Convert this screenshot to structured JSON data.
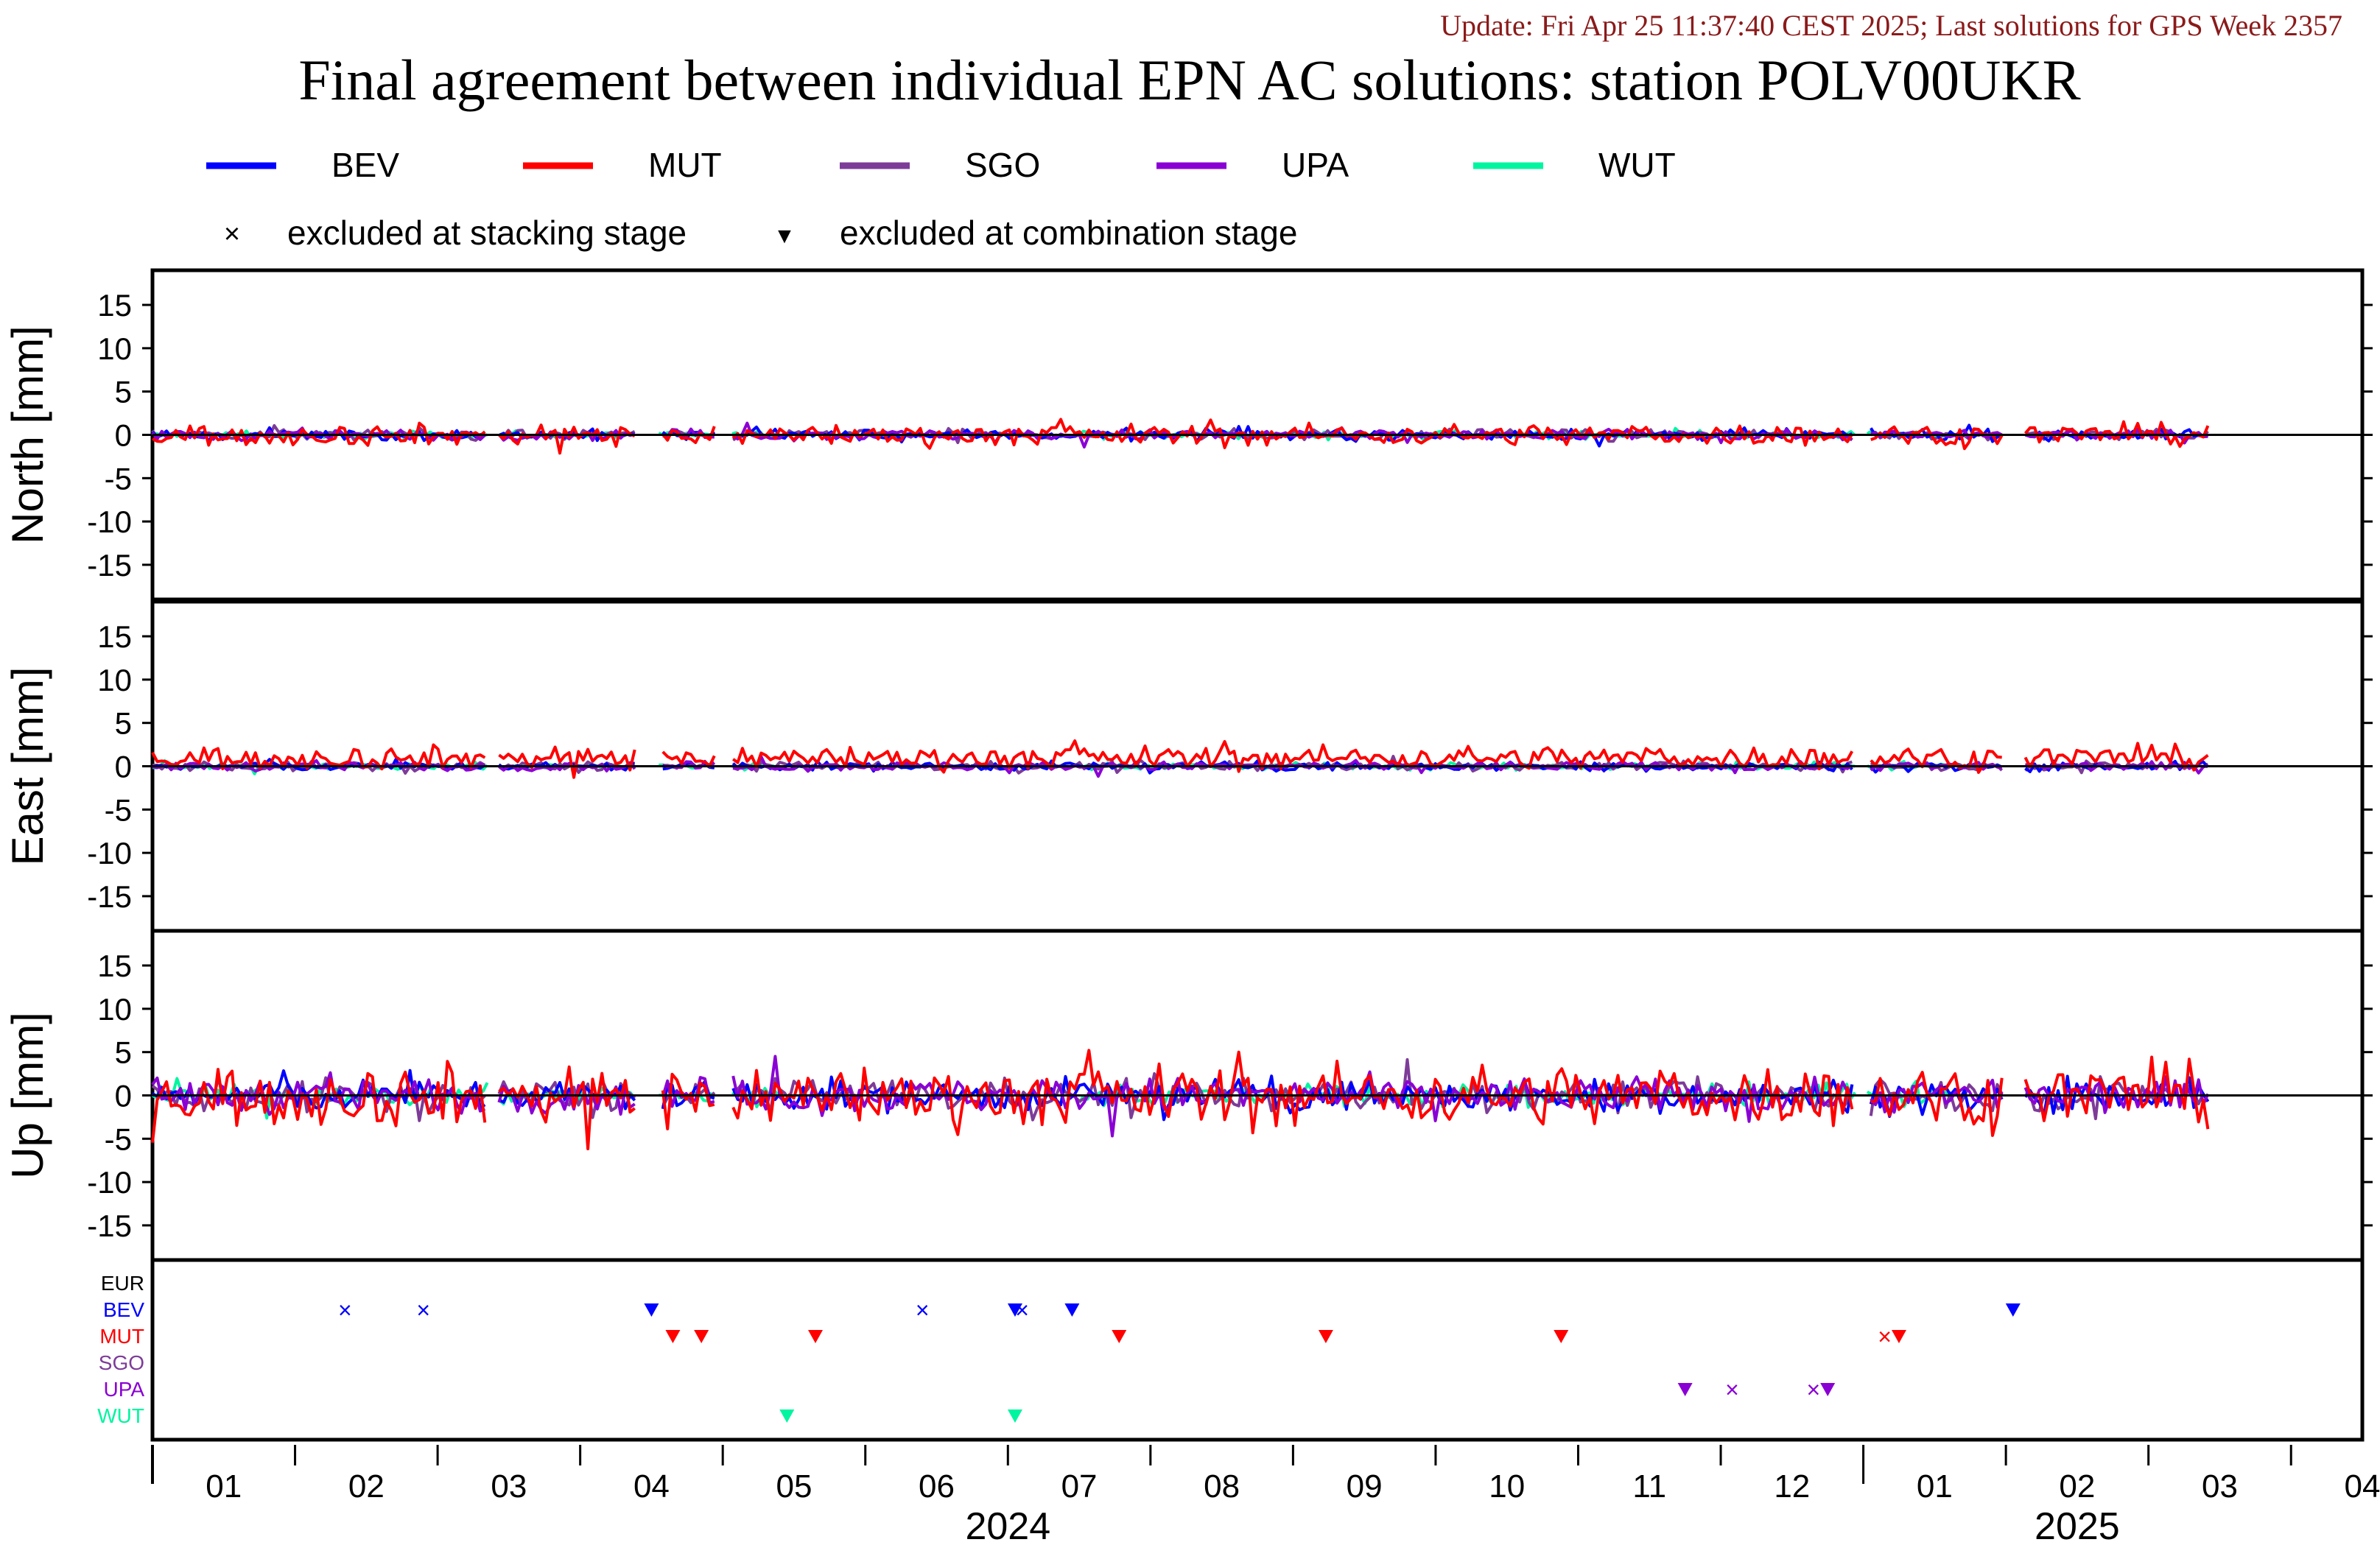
{
  "update_text": "Update: Fri Apr 25 11:37:40 CEST 2025; Last solutions for GPS Week 2357",
  "colors": {
    "update": "#8b1a1a",
    "BEV": "#0000ff",
    "MUT": "#ff0000",
    "SGO": "#7d3c98",
    "UPA": "#8a00d4",
    "WUT": "#00f5a0",
    "EUR": "#000000",
    "axis": "#000000"
  },
  "legend": {
    "items": [
      {
        "label": "BEV",
        "color_key": "BEV"
      },
      {
        "label": "MUT",
        "color_key": "MUT"
      },
      {
        "label": "SGO",
        "color_key": "SGO"
      },
      {
        "label": "UPA",
        "color_key": "UPA"
      },
      {
        "label": "WUT",
        "color_key": "WUT"
      }
    ],
    "markers": [
      {
        "symbol": "×",
        "label": "excluded at stacking stage"
      },
      {
        "symbol": "▼",
        "label": "excluded at combination stage"
      }
    ]
  },
  "chart_data": {
    "type": "line",
    "title": "Final agreement between individual EPN AC solutions: station POLV00UKR",
    "x_axis": {
      "month_labels": [
        "01",
        "02",
        "03",
        "04",
        "05",
        "06",
        "07",
        "08",
        "09",
        "10",
        "11",
        "12",
        "01",
        "02",
        "03",
        "04"
      ],
      "year_labels": [
        {
          "label": "2024",
          "month_index": 6
        },
        {
          "label": "2025",
          "month_index": 13.5
        }
      ],
      "range_months": [
        0,
        15.5
      ]
    },
    "ylim": [
      -19,
      19
    ],
    "yticks": [
      15,
      10,
      5,
      0,
      -5,
      -10,
      -15
    ],
    "panels": [
      {
        "ylabel": "North [mm]",
        "amplitude": {
          "BEV": 0.6,
          "MUT": 1.2,
          "SGO": 0.6,
          "UPA": 0.6,
          "WUT": 0.4
        }
      },
      {
        "ylabel": "East [mm]",
        "amplitude": {
          "BEV": 0.5,
          "MUT": 1.3,
          "SGO": 0.5,
          "UPA": 0.5,
          "WUT": 0.4
        },
        "mut_offset": 1.0
      },
      {
        "ylabel": "Up [mm]",
        "amplitude": {
          "BEV": 1.8,
          "MUT": 3.5,
          "SGO": 1.8,
          "UPA": 2.0,
          "WUT": 1.2
        }
      }
    ],
    "series": [
      {
        "name": "BEV"
      },
      {
        "name": "MUT"
      },
      {
        "name": "SGO"
      },
      {
        "name": "UPA"
      },
      {
        "name": "WUT"
      }
    ],
    "exclusion_rows": [
      "EUR",
      "BEV",
      "MUT",
      "SGO",
      "UPA",
      "WUT"
    ],
    "exclusions": [
      {
        "row": "BEV",
        "type": "stacking",
        "month": 1.35
      },
      {
        "row": "BEV",
        "type": "stacking",
        "month": 1.9
      },
      {
        "row": "BEV",
        "type": "combination",
        "month": 3.5
      },
      {
        "row": "BEV",
        "type": "stacking",
        "month": 5.4
      },
      {
        "row": "BEV",
        "type": "combination",
        "month": 6.05
      },
      {
        "row": "BEV",
        "type": "stacking",
        "month": 6.1
      },
      {
        "row": "BEV",
        "type": "combination",
        "month": 6.45
      },
      {
        "row": "BEV",
        "type": "combination",
        "month": 13.05
      },
      {
        "row": "MUT",
        "type": "combination",
        "month": 3.65
      },
      {
        "row": "MUT",
        "type": "combination",
        "month": 3.85
      },
      {
        "row": "MUT",
        "type": "combination",
        "month": 4.65
      },
      {
        "row": "MUT",
        "type": "combination",
        "month": 6.78
      },
      {
        "row": "MUT",
        "type": "combination",
        "month": 8.23
      },
      {
        "row": "MUT",
        "type": "combination",
        "month": 9.88
      },
      {
        "row": "MUT",
        "type": "stacking",
        "month": 12.15
      },
      {
        "row": "MUT",
        "type": "combination",
        "month": 12.25
      },
      {
        "row": "UPA",
        "type": "combination",
        "month": 10.75
      },
      {
        "row": "UPA",
        "type": "stacking",
        "month": 11.08
      },
      {
        "row": "UPA",
        "type": "stacking",
        "month": 11.65
      },
      {
        "row": "UPA",
        "type": "combination",
        "month": 11.75
      },
      {
        "row": "WUT",
        "type": "combination",
        "month": 4.45
      },
      {
        "row": "WUT",
        "type": "combination",
        "month": 6.05
      }
    ]
  }
}
